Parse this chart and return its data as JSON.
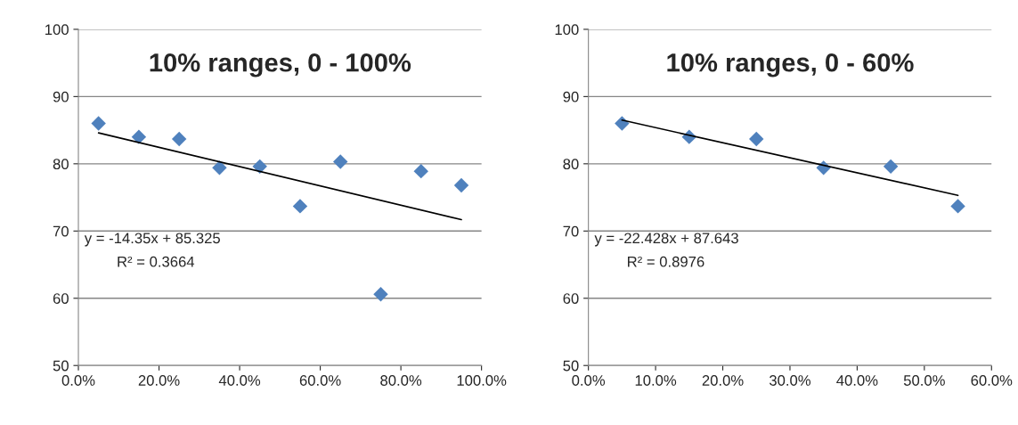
{
  "chart_data": [
    {
      "type": "scatter",
      "title": "10% ranges, 0 - 100%",
      "marker": "diamond",
      "grid": "y",
      "legend": false,
      "xlim": [
        0,
        1
      ],
      "xticks": [
        {
          "value": 0,
          "label": "0.0%"
        },
        {
          "value": 0.2,
          "label": "20.0%"
        },
        {
          "value": 0.4,
          "label": "40.0%"
        },
        {
          "value": 0.6,
          "label": "60.0%"
        },
        {
          "value": 0.8,
          "label": "80.0%"
        },
        {
          "value": 1.0,
          "label": "100.0%"
        }
      ],
      "ylim": [
        50,
        100
      ],
      "yticks": [
        50,
        60,
        70,
        80,
        90,
        100
      ],
      "series": [
        {
          "color": "#4f81bd",
          "x": [
            0.05,
            0.15,
            0.25,
            0.35,
            0.45,
            0.55,
            0.65,
            0.75,
            0.85,
            0.95
          ],
          "values": [
            86,
            84,
            83.7,
            79.4,
            79.6,
            73.7,
            80.3,
            60.6,
            78.9,
            76.8
          ]
        },
        {
          "type": "line",
          "color": "#000000",
          "marker": "none",
          "x": [
            0.05,
            0.95
          ],
          "values": [
            84.6,
            71.7
          ]
        }
      ],
      "annotations": [
        "y = -14.35x + 85.325",
        "R² = 0.3664"
      ]
    },
    {
      "type": "scatter",
      "title": "10% ranges, 0 - 60%",
      "marker": "diamond",
      "grid": "y",
      "legend": false,
      "xlim": [
        0,
        0.6
      ],
      "xticks": [
        {
          "value": 0,
          "label": "0.0%"
        },
        {
          "value": 0.1,
          "label": "10.0%"
        },
        {
          "value": 0.2,
          "label": "20.0%"
        },
        {
          "value": 0.3,
          "label": "30.0%"
        },
        {
          "value": 0.4,
          "label": "40.0%"
        },
        {
          "value": 0.5,
          "label": "50.0%"
        },
        {
          "value": 0.6,
          "label": "60.0%"
        }
      ],
      "ylim": [
        50,
        100
      ],
      "yticks": [
        50,
        60,
        70,
        80,
        90,
        100
      ],
      "series": [
        {
          "color": "#4f81bd",
          "x": [
            0.05,
            0.15,
            0.25,
            0.35,
            0.45,
            0.55
          ],
          "values": [
            86,
            84,
            83.7,
            79.4,
            79.6,
            73.7
          ]
        },
        {
          "type": "line",
          "color": "#000000",
          "marker": "none",
          "x": [
            0.05,
            0.55
          ],
          "values": [
            86.5,
            75.3
          ]
        }
      ],
      "annotations": [
        "y = -22.428x + 87.643",
        "R² = 0.8976"
      ]
    }
  ]
}
